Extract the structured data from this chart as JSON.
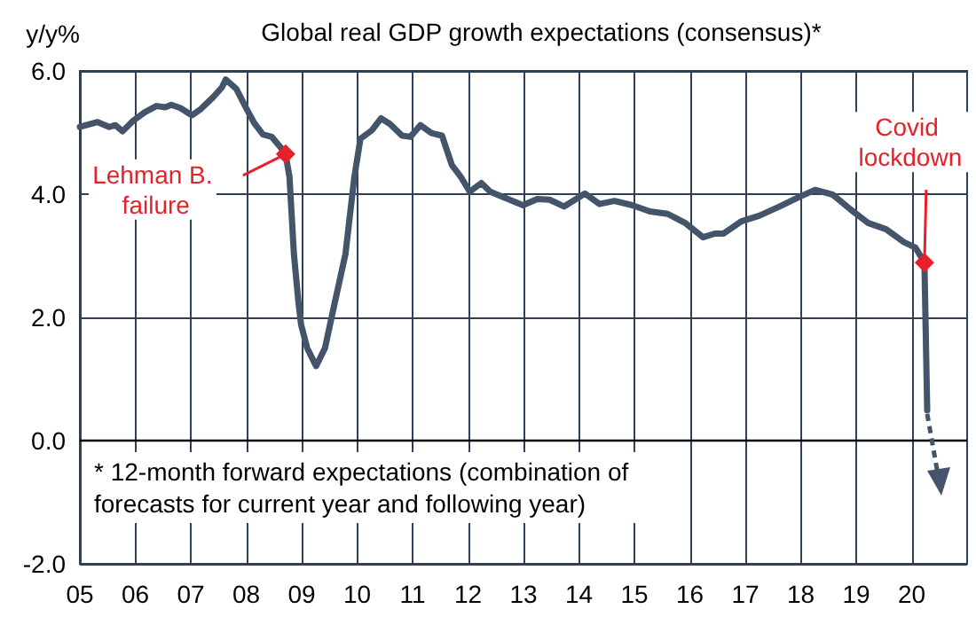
{
  "chart_data": {
    "type": "line",
    "title": "Global real GDP growth expectations (consensus)*",
    "ylabel": "y/y%",
    "x": [
      2005.0,
      2005.32,
      2005.53,
      2005.64,
      2005.77,
      2005.96,
      2006.17,
      2006.38,
      2006.54,
      2006.65,
      2006.81,
      2007.02,
      2007.18,
      2007.4,
      2007.56,
      2007.63,
      2007.82,
      2007.98,
      2008.14,
      2008.3,
      2008.46,
      2008.62,
      2008.71,
      2008.78,
      2008.86,
      2008.94,
      2008.99,
      2009.1,
      2009.26,
      2009.42,
      2009.58,
      2009.79,
      2009.95,
      2010.06,
      2010.27,
      2010.43,
      2010.59,
      2010.81,
      2010.96,
      2011.14,
      2011.34,
      2011.53,
      2011.71,
      2011.87,
      2012.03,
      2012.24,
      2012.4,
      2012.67,
      2012.99,
      2013.25,
      2013.47,
      2013.73,
      2014.11,
      2014.37,
      2014.64,
      2014.96,
      2015.28,
      2015.6,
      2015.92,
      2016.24,
      2016.45,
      2016.61,
      2016.93,
      2017.25,
      2017.62,
      2017.94,
      2018.26,
      2018.58,
      2018.9,
      2019.22,
      2019.54,
      2019.86,
      2020.07,
      2020.23,
      2020.28
    ],
    "series": [
      {
        "color": "#44546a",
        "values": [
          5.09,
          5.17,
          5.09,
          5.12,
          5.02,
          5.19,
          5.33,
          5.43,
          5.41,
          5.45,
          5.4,
          5.28,
          5.38,
          5.57,
          5.73,
          5.86,
          5.71,
          5.43,
          5.16,
          4.97,
          4.93,
          4.76,
          4.65,
          4.28,
          3.03,
          2.26,
          1.88,
          1.5,
          1.21,
          1.5,
          2.17,
          3.03,
          4.28,
          4.9,
          5.04,
          5.23,
          5.14,
          4.95,
          4.93,
          5.12,
          4.99,
          4.95,
          4.47,
          4.28,
          4.04,
          4.18,
          4.04,
          3.94,
          3.82,
          3.92,
          3.91,
          3.8,
          4.01,
          3.84,
          3.89,
          3.82,
          3.72,
          3.68,
          3.53,
          3.3,
          3.36,
          3.36,
          3.56,
          3.65,
          3.8,
          3.94,
          4.07,
          3.99,
          3.75,
          3.53,
          3.43,
          3.22,
          3.13,
          2.89,
          0.49
        ]
      }
    ],
    "xlim": [
      2005,
      2021
    ],
    "xticks": [
      {
        "value": 2005,
        "label": "05"
      },
      {
        "value": 2006,
        "label": "06"
      },
      {
        "value": 2007,
        "label": "07"
      },
      {
        "value": 2008,
        "label": "08"
      },
      {
        "value": 2009,
        "label": "09"
      },
      {
        "value": 2010,
        "label": "10"
      },
      {
        "value": 2011,
        "label": "11"
      },
      {
        "value": 2012,
        "label": "12"
      },
      {
        "value": 2013,
        "label": "13"
      },
      {
        "value": 2014,
        "label": "14"
      },
      {
        "value": 2015,
        "label": "15"
      },
      {
        "value": 2016,
        "label": "16"
      },
      {
        "value": 2017,
        "label": "17"
      },
      {
        "value": 2018,
        "label": "18"
      },
      {
        "value": 2019,
        "label": "19"
      },
      {
        "value": 2020,
        "label": "20"
      }
    ],
    "ylim": [
      -2,
      6
    ],
    "yticks": [
      {
        "value": -2,
        "label": "-2.0"
      },
      {
        "value": 0,
        "label": "0.0"
      },
      {
        "value": 2,
        "label": "2.0"
      },
      {
        "value": 4,
        "label": "4.0"
      },
      {
        "value": 6,
        "label": "6.0"
      }
    ],
    "ref_lines": [
      {
        "axis": "y",
        "value": 0,
        "color": "#000000"
      }
    ],
    "annotations": [
      {
        "text": "Lehman B. failure",
        "x": 2008.71,
        "y": 4.65
      },
      {
        "text": "Covid lockdown",
        "x": 2020.23,
        "y": 2.89
      },
      "* 12-month forward expectations (combination of forecasts for current year and following year)"
    ],
    "grid": true,
    "marker": "none",
    "line_style": "solid"
  }
}
